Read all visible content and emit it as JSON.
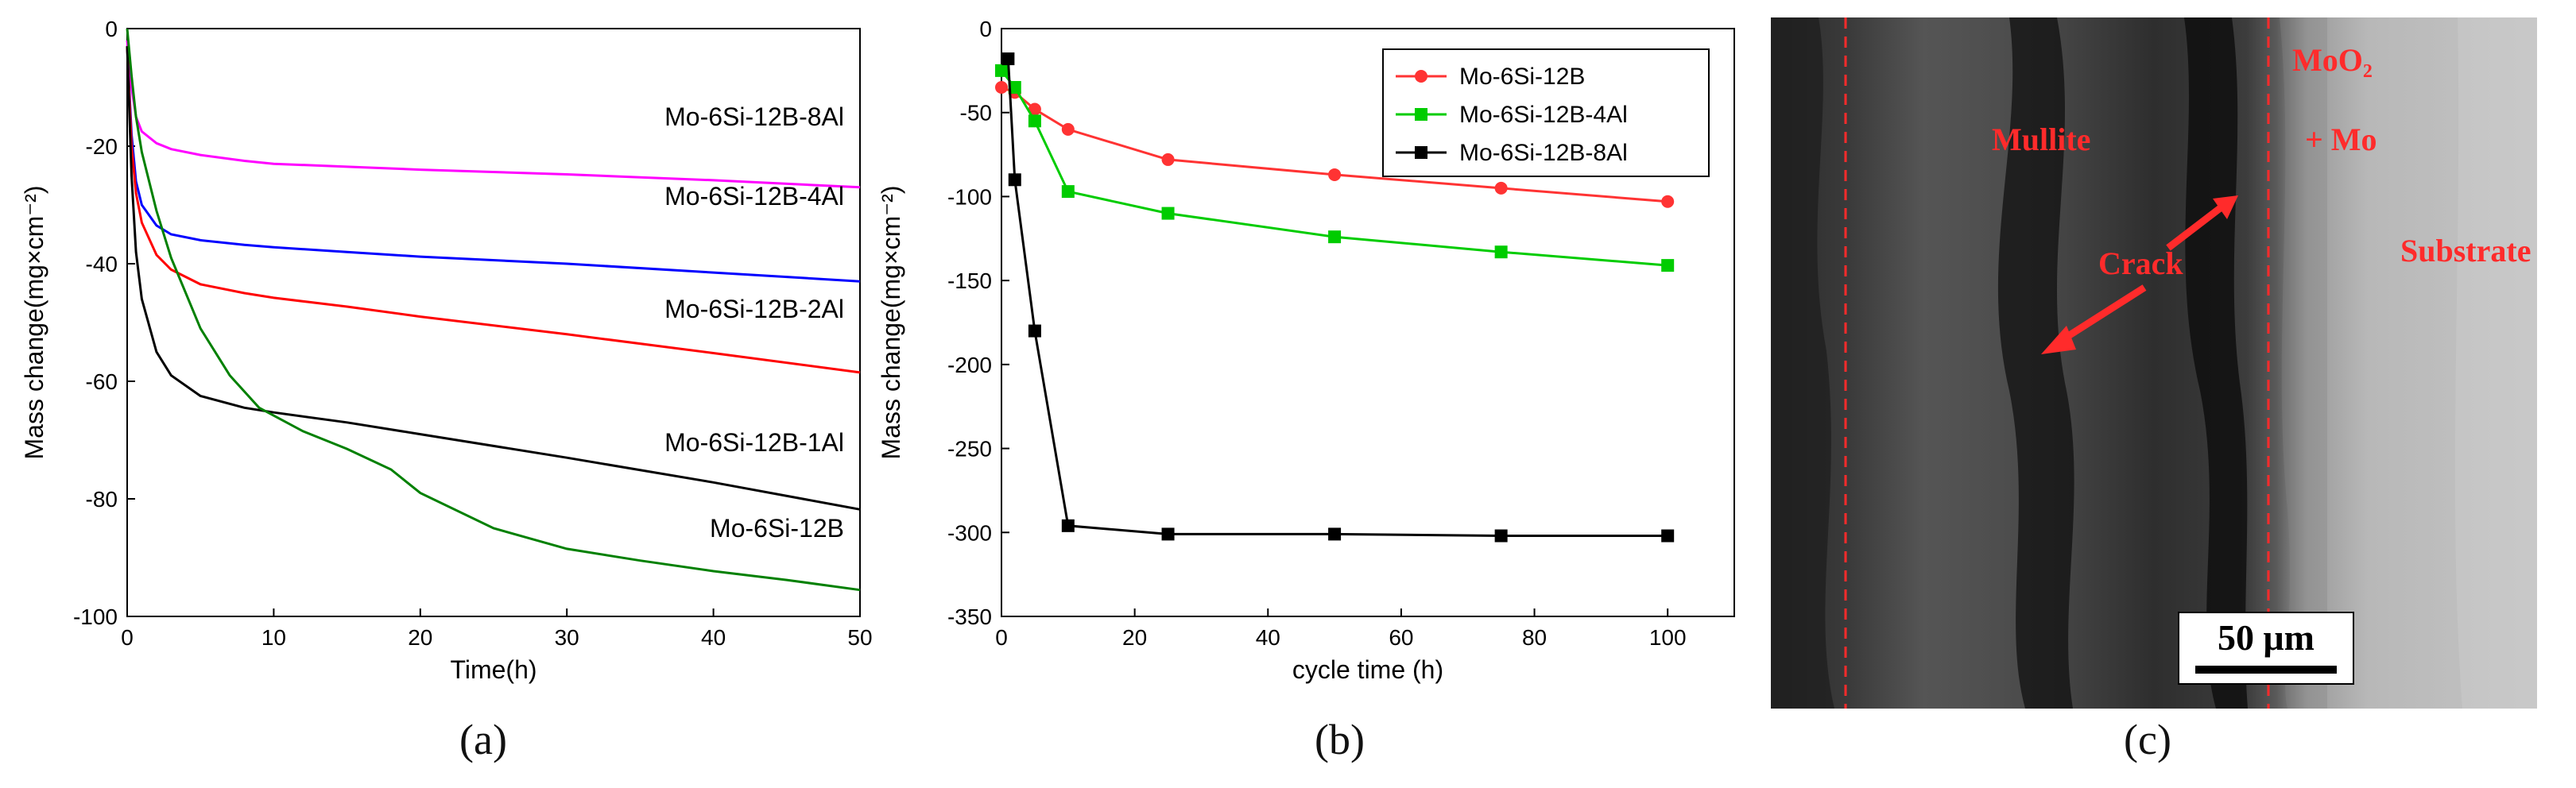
{
  "panel_labels": [
    "(a)",
    "(b)",
    "(c)"
  ],
  "chart_data": [
    {
      "type": "line",
      "xlabel": "Time(h)",
      "ylabel": "Mass change(mg×cm⁻²)",
      "xlim": [
        0,
        50
      ],
      "ylim": [
        -100,
        0
      ],
      "xticks": [
        0,
        10,
        20,
        30,
        40,
        50
      ],
      "yticks": [
        0,
        -20,
        -40,
        -60,
        -80,
        -100
      ],
      "grid": false,
      "series": [
        {
          "name": "Mo-6Si-12B-8Al",
          "color": "#ff00ff",
          "x": [
            0,
            0.3,
            0.6,
            1,
            2,
            3,
            5,
            8,
            10,
            15,
            20,
            30,
            40,
            50
          ],
          "y": [
            -2,
            -10,
            -15,
            -17.5,
            -19.5,
            -20.5,
            -21.5,
            -22.5,
            -23,
            -23.5,
            -24,
            -24.8,
            -25.8,
            -27
          ]
        },
        {
          "name": "Mo-6Si-12B-4Al",
          "color": "#0000ff",
          "x": [
            0,
            0.3,
            0.6,
            1,
            2,
            3,
            5,
            8,
            10,
            15,
            20,
            30,
            40,
            50
          ],
          "y": [
            -3,
            -18,
            -26,
            -30,
            -33.5,
            -35,
            -36,
            -36.8,
            -37.2,
            -38,
            -38.8,
            -40,
            -41.5,
            -43
          ]
        },
        {
          "name": "Mo-6Si-12B-2Al",
          "color": "#ff0000",
          "x": [
            0,
            0.3,
            0.6,
            1,
            2,
            3,
            5,
            8,
            10,
            15,
            20,
            30,
            40,
            50
          ],
          "y": [
            -3,
            -20,
            -28,
            -33,
            -38.5,
            -41,
            -43.5,
            -45,
            -45.8,
            -47.3,
            -49,
            -52,
            -55.2,
            -58.5
          ]
        },
        {
          "name": "Mo-6Si-12B-1Al",
          "color": "#000000",
          "x": [
            0,
            0.3,
            0.6,
            1,
            2,
            3,
            5,
            8,
            10,
            15,
            20,
            30,
            40,
            50
          ],
          "y": [
            -3,
            -25,
            -38,
            -46,
            -55,
            -59,
            -62.5,
            -64.5,
            -65.3,
            -67,
            -69,
            -73,
            -77.2,
            -81.8
          ]
        },
        {
          "name": "Mo-6Si-12B",
          "color": "#008000",
          "x": [
            0,
            0.3,
            0.6,
            1,
            2,
            3,
            5,
            7,
            9,
            12,
            15,
            18,
            20,
            25,
            30,
            35,
            40,
            45,
            50
          ],
          "y": [
            0,
            -8,
            -15,
            -21,
            -31,
            -39,
            -51,
            -59,
            -64.5,
            -68.5,
            -71.5,
            -75,
            -79,
            -85,
            -88.5,
            -90.5,
            -92.3,
            -93.8,
            -95.5
          ]
        }
      ]
    },
    {
      "type": "line",
      "xlabel": "cycle time (h)",
      "ylabel": "Mass change(mg×cm⁻²)",
      "xlim": [
        0,
        110
      ],
      "ylim": [
        -350,
        0
      ],
      "xticks": [
        0,
        20,
        40,
        60,
        80,
        100
      ],
      "yticks": [
        0,
        -50,
        -100,
        -150,
        -200,
        -250,
        -300,
        -350
      ],
      "legend": "top-right",
      "grid": false,
      "series": [
        {
          "name": "Mo-6Si-12B",
          "color": "#ff3333",
          "marker": "circle",
          "x": [
            0,
            2,
            5,
            10,
            25,
            50,
            75,
            100
          ],
          "y": [
            -35,
            -38,
            -48,
            -60,
            -78,
            -87,
            -95,
            -103
          ]
        },
        {
          "name": "Mo-6Si-12B-4Al",
          "color": "#00cc00",
          "marker": "square",
          "x": [
            0,
            2,
            5,
            10,
            25,
            50,
            75,
            100
          ],
          "y": [
            -25,
            -35,
            -55,
            -97,
            -110,
            -124,
            -133,
            -141
          ]
        },
        {
          "name": "Mo-6Si-12B-8Al",
          "color": "#000000",
          "marker": "square",
          "x": [
            1,
            2,
            5,
            10,
            25,
            50,
            75,
            100
          ],
          "y": [
            -18,
            -90,
            -180,
            -296,
            -301,
            -301,
            -302,
            -302
          ]
        }
      ]
    }
  ],
  "sem_image": {
    "labels": {
      "mullite": "Mullite",
      "moo2": "MoO₂",
      "mo": "+ Mo",
      "crack": "Crack",
      "substrate": "Substrate"
    },
    "scale_bar": "50 μm",
    "annotation_color": "#ff2b2b"
  }
}
